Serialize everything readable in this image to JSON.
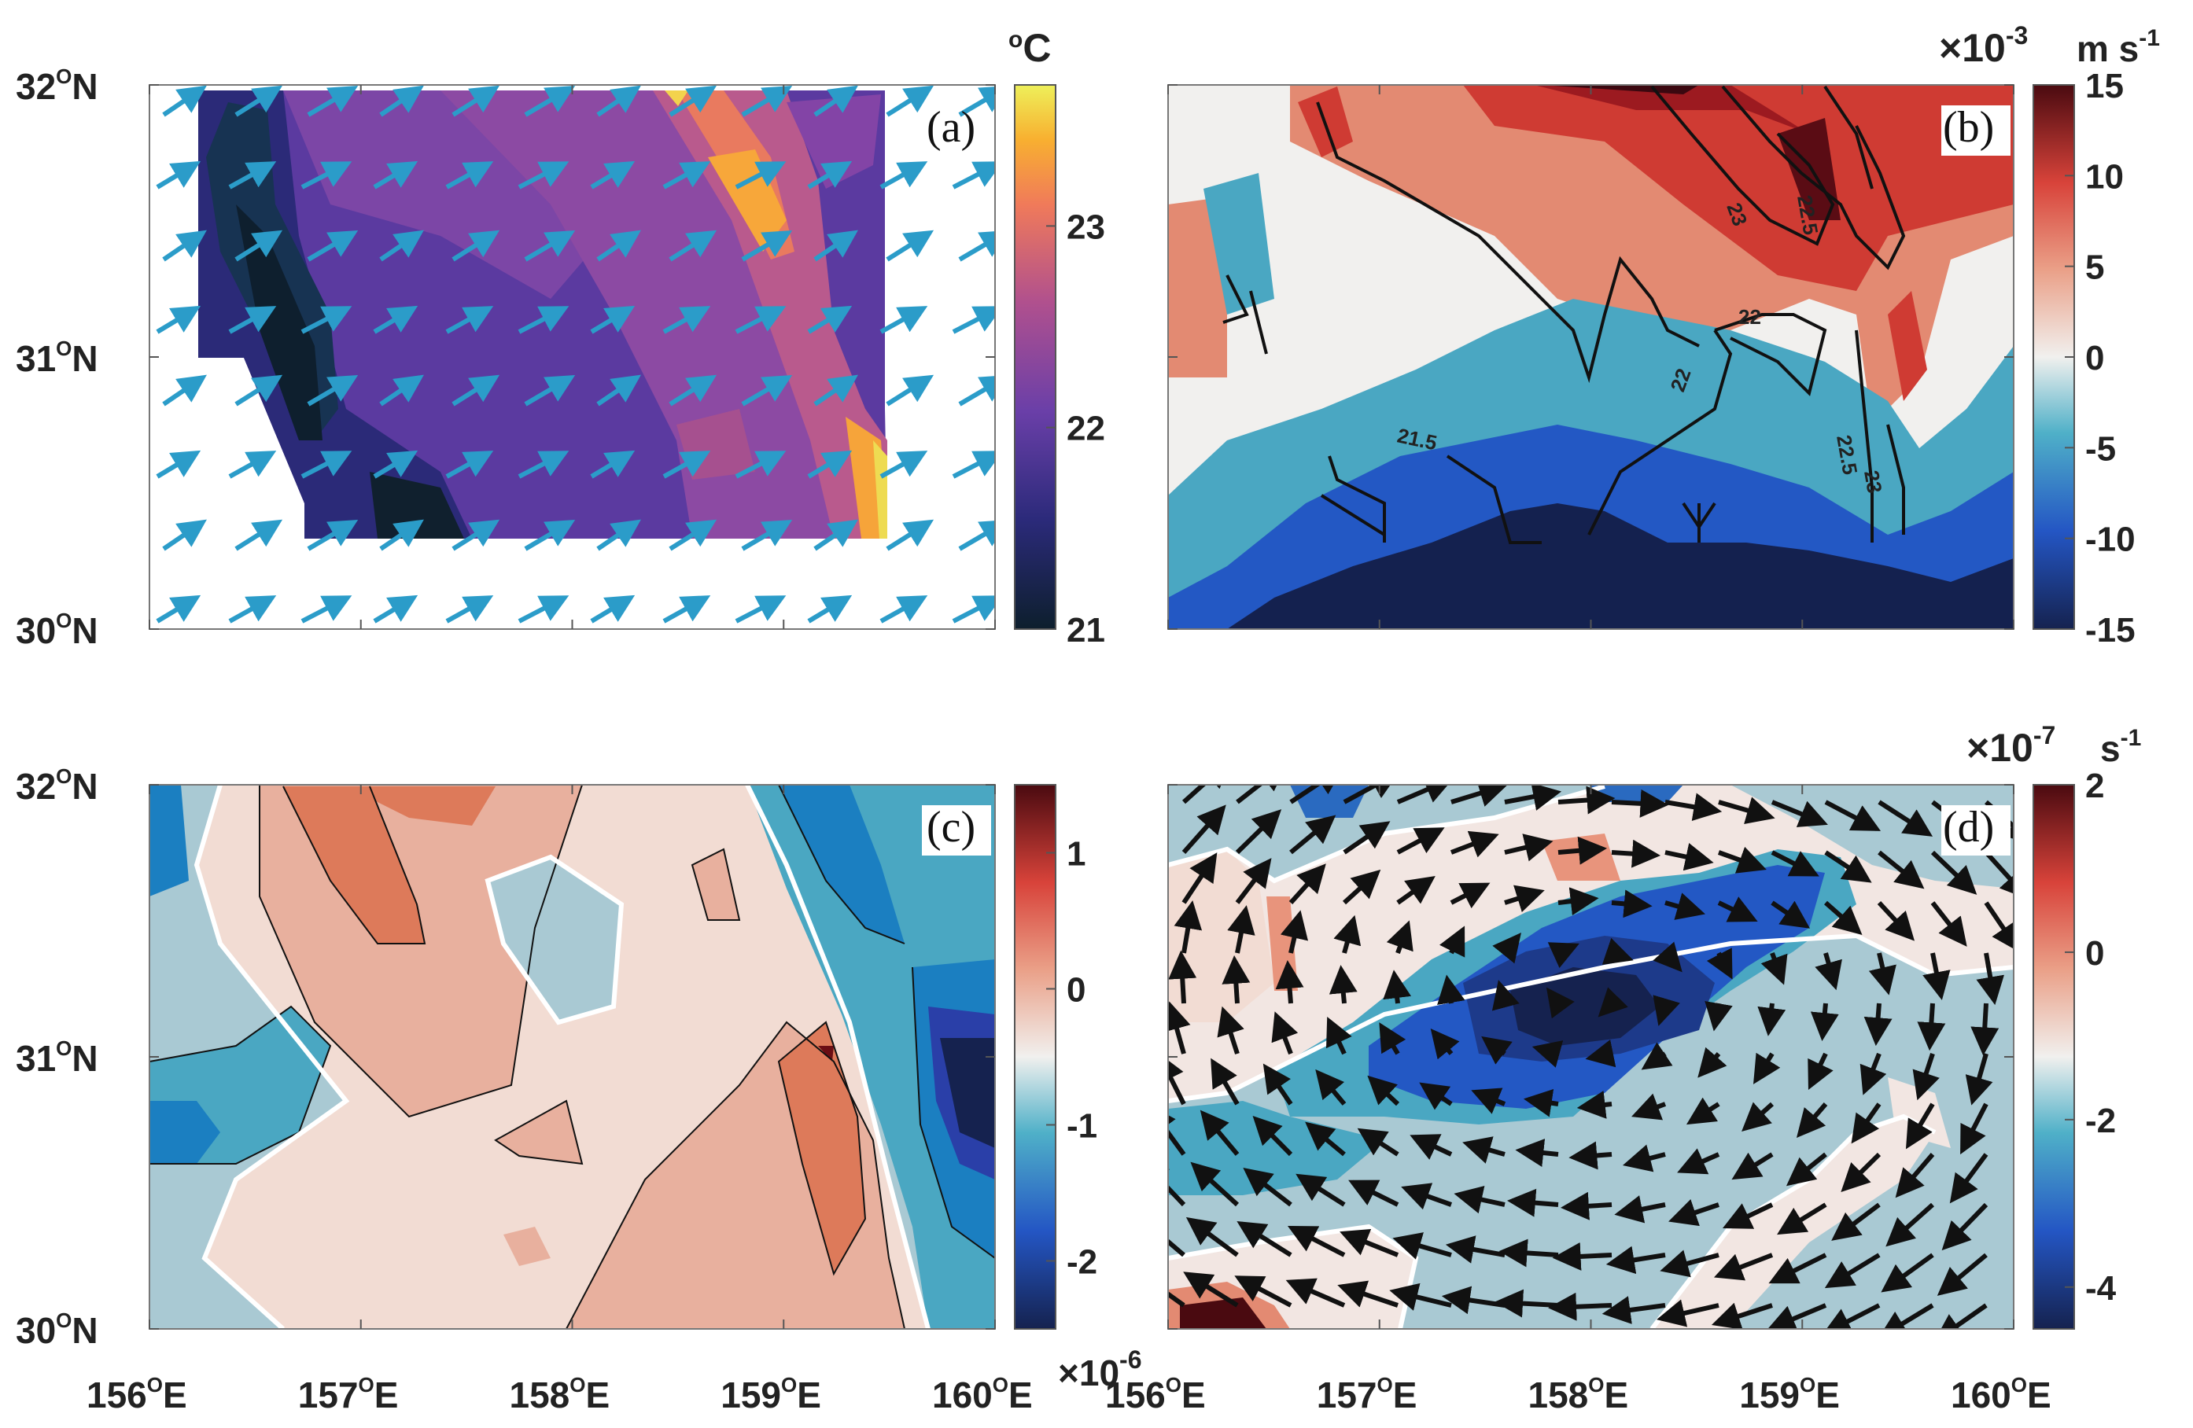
{
  "chart_data": [
    {
      "panel": "a",
      "type": "heatmap",
      "label": "(a)",
      "description_units": "sea surface temperature with wind vectors",
      "colorbar": {
        "unit": "oC",
        "ticks": [
          21,
          22,
          23
        ],
        "range": [
          21,
          23.7
        ],
        "colormap": "plasma-like"
      },
      "x": {
        "ticks": [
          "156",
          "157",
          "158",
          "159",
          "160"
        ],
        "range": [
          156,
          160
        ],
        "suffix": "E"
      },
      "y": {
        "ticks": [
          "30",
          "31",
          "32"
        ],
        "range": [
          30,
          32
        ],
        "suffix": "N"
      },
      "vectors": "uniform south-westerly winds pointing north-east"
    },
    {
      "panel": "b",
      "type": "heatmap",
      "label": "(b)",
      "colorbar": {
        "unit": "m s-1",
        "scale": "×10-3",
        "ticks": [
          15,
          10,
          5,
          0,
          -5,
          -10,
          -15
        ],
        "range": [
          -15,
          15
        ],
        "colormap": "blue-white-red"
      },
      "contour_labels": [
        "21.5",
        "22",
        "22",
        "22.5",
        "23",
        "22.5",
        "23"
      ],
      "x": {
        "range": [
          156,
          160
        ]
      },
      "y": {
        "range": [
          30,
          32
        ]
      }
    },
    {
      "panel": "c",
      "type": "heatmap",
      "label": "(c)",
      "colorbar": {
        "unit": "",
        "scale": "×10-6",
        "ticks": [
          1,
          0,
          -1,
          -2
        ],
        "range": [
          -2.5,
          1.5
        ],
        "colormap": "blue-white-red"
      },
      "x": {
        "range": [
          156,
          160
        ]
      },
      "y": {
        "range": [
          30,
          32
        ]
      }
    },
    {
      "panel": "d",
      "type": "heatmap",
      "label": "(d)",
      "colorbar": {
        "unit": "s-1",
        "scale": "×10-7",
        "ticks": [
          2,
          0,
          -2,
          -4
        ],
        "range": [
          -4.5,
          2
        ],
        "colormap": "blue-white-red"
      },
      "vectors": "anticyclonic-curved black arrows",
      "x": {
        "range": [
          156,
          160
        ]
      },
      "y": {
        "range": [
          30,
          32
        ]
      }
    }
  ],
  "axes": {
    "lat_ticks": [
      {
        "deg": "32",
        "sup": "O",
        "dir": "N"
      },
      {
        "deg": "31",
        "sup": "O",
        "dir": "N"
      },
      {
        "deg": "30",
        "sup": "O",
        "dir": "N"
      }
    ],
    "lon_ticks": [
      {
        "deg": "156",
        "sup": "O",
        "dir": "E"
      },
      {
        "deg": "157",
        "sup": "O",
        "dir": "E"
      },
      {
        "deg": "158",
        "sup": "O",
        "dir": "E"
      },
      {
        "deg": "159",
        "sup": "O",
        "dir": "E"
      },
      {
        "deg": "160",
        "sup": "O",
        "dir": "E"
      }
    ]
  },
  "colors": {
    "arrow_a": "#2b9cc9",
    "arrow_d": "#111111",
    "contour": "#111111"
  }
}
